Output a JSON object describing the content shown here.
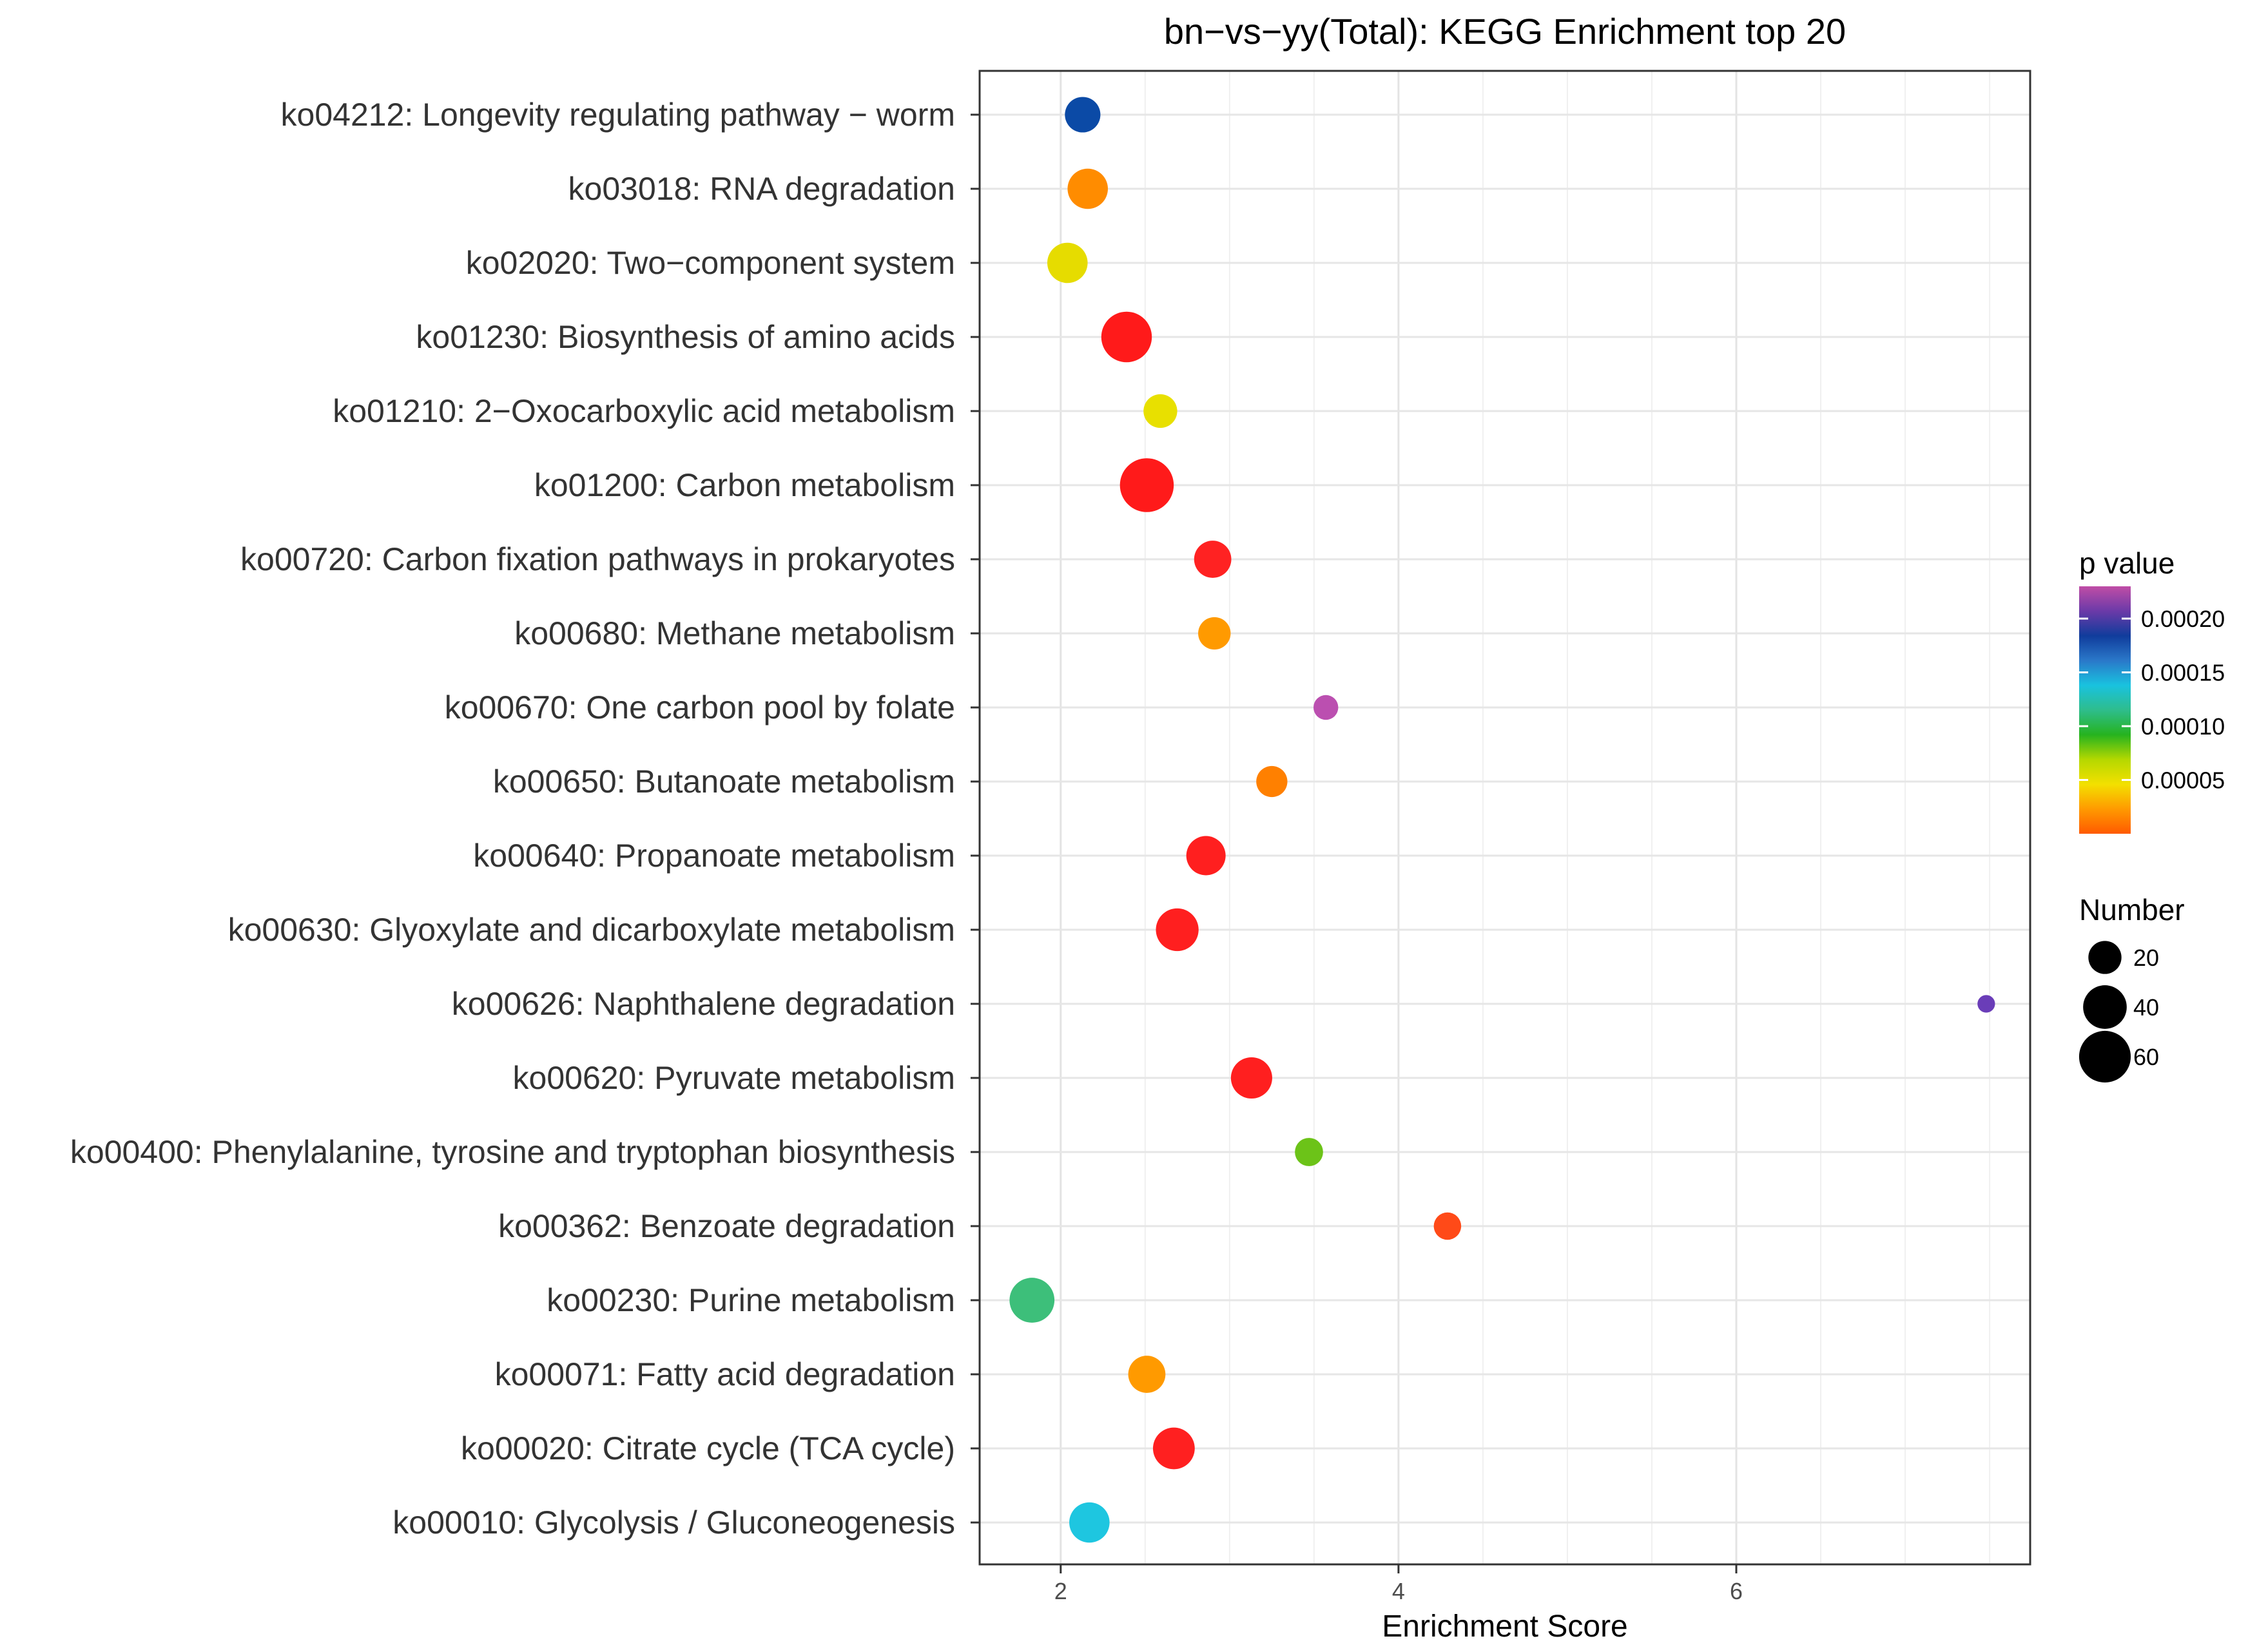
{
  "chart_data": {
    "type": "scatter",
    "title": "bn−vs−yy(Total): KEGG Enrichment top 20",
    "xlabel": "Enrichment Score",
    "ylabel": "",
    "xlim": [
      1.52,
      7.74
    ],
    "xticks": [
      2,
      4,
      6
    ],
    "grid": true,
    "categories": [
      "ko04212: Longevity regulating pathway − worm",
      "ko03018: RNA degradation",
      "ko02020: Two−component system",
      "ko01230: Biosynthesis of amino acids",
      "ko01210: 2−Oxocarboxylic acid metabolism",
      "ko01200: Carbon metabolism",
      "ko00720: Carbon fixation pathways in prokaryotes",
      "ko00680: Methane metabolism",
      "ko00670: One carbon pool by folate",
      "ko00650: Butanoate metabolism",
      "ko00640: Propanoate metabolism",
      "ko00630: Glyoxylate and dicarboxylate metabolism",
      "ko00626: Naphthalene degradation",
      "ko00620: Pyruvate metabolism",
      "ko00400: Phenylalanine, tyrosine and tryptophan biosynthesis",
      "ko00362: Benzoate degradation",
      "ko00230: Purine metabolism",
      "ko00071: Fatty acid degradation",
      "ko00020: Citrate cycle (TCA cycle)",
      "ko00010: Glycolysis / Gluconeogenesis"
    ],
    "points": [
      {
        "x": 2.13,
        "number": 24,
        "p": 0.00019,
        "color": "#0b4aa6"
      },
      {
        "x": 2.16,
        "number": 33,
        "p": 2e-05,
        "color": "#ff8c00"
      },
      {
        "x": 2.04,
        "number": 33,
        "p": 5e-05,
        "color": "#e6dc00"
      },
      {
        "x": 2.39,
        "number": 57,
        "p": 1e-06,
        "color": "#ff1a1a"
      },
      {
        "x": 2.59,
        "number": 21,
        "p": 5e-05,
        "color": "#e8e000"
      },
      {
        "x": 2.51,
        "number": 66,
        "p": 1e-06,
        "color": "#ff1a1a"
      },
      {
        "x": 2.9,
        "number": 27,
        "p": 3e-06,
        "color": "#ff2222"
      },
      {
        "x": 2.91,
        "number": 19,
        "p": 3e-05,
        "color": "#ff9a00"
      },
      {
        "x": 3.57,
        "number": 9,
        "p": 0.00023,
        "color": "#bb4fb0"
      },
      {
        "x": 3.25,
        "number": 17,
        "p": 2e-05,
        "color": "#ff8000"
      },
      {
        "x": 2.86,
        "number": 31,
        "p": 3e-06,
        "color": "#ff1f1f"
      },
      {
        "x": 2.69,
        "number": 38,
        "p": 2e-06,
        "color": "#ff1f1f"
      },
      {
        "x": 7.48,
        "number": 3,
        "p": 0.00021,
        "color": "#6a3db8"
      },
      {
        "x": 3.13,
        "number": 35,
        "p": 2e-06,
        "color": "#ff1f1f"
      },
      {
        "x": 3.47,
        "number": 13,
        "p": 8e-05,
        "color": "#6cc318"
      },
      {
        "x": 4.29,
        "number": 12,
        "p": 1e-05,
        "color": "#ff4a18"
      },
      {
        "x": 1.83,
        "number": 43,
        "p": 0.00011,
        "color": "#3dbf7a"
      },
      {
        "x": 2.51,
        "number": 27,
        "p": 3e-05,
        "color": "#ff9a00"
      },
      {
        "x": 2.67,
        "number": 36,
        "p": 2e-06,
        "color": "#ff2020"
      },
      {
        "x": 2.17,
        "number": 33,
        "p": 0.00015,
        "color": "#1ec6e0"
      }
    ],
    "legend_color": {
      "title": "p value",
      "ticks": [
        {
          "value": 0.0002,
          "label": "0.00020"
        },
        {
          "value": 0.00015,
          "label": "0.00015"
        },
        {
          "value": 0.0001,
          "label": "0.00010"
        },
        {
          "value": 5e-05,
          "label": "0.00005"
        }
      ],
      "range": [
        0,
        0.00023
      ],
      "gradient": [
        "#ff5a00",
        "#ff9a00",
        "#f3e000",
        "#b4d800",
        "#26b31f",
        "#2ebd8c",
        "#19c2df",
        "#2a78c9",
        "#103c9c",
        "#6b3aa8",
        "#c04da6"
      ]
    },
    "legend_size": {
      "title": "Number",
      "entries": [
        {
          "value": 20,
          "label": "20"
        },
        {
          "value": 40,
          "label": "40"
        },
        {
          "value": 60,
          "label": "60"
        }
      ]
    }
  }
}
